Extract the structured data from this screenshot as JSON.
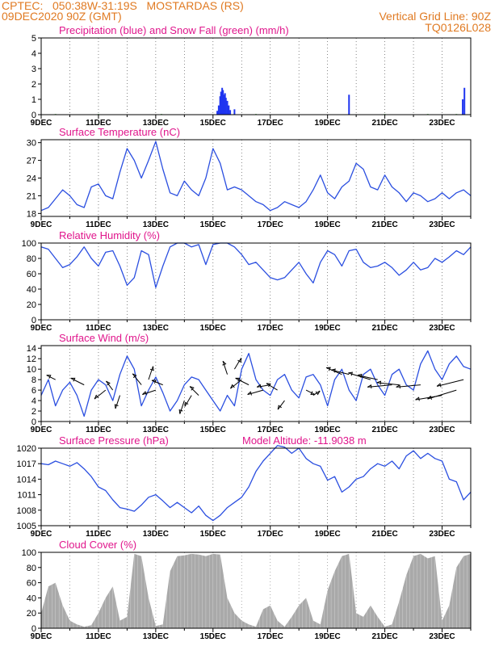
{
  "header": {
    "location_line": "CPTEC:   050:38W-31:19S   MOSTARDAS (RS)",
    "date_line": "09DEC2020 90Z (GMT)",
    "grid_line": "Vertical Grid Line: 90Z",
    "model_code": "TQ0126L028"
  },
  "colors": {
    "header": "#e07a22",
    "titles": "#e0168c",
    "precip": "#1f35f0",
    "snow": "#22aa22",
    "line": "#2b4fe0",
    "cloud": "#a9a9a9",
    "grid": "#555555",
    "arrow": "#000000"
  },
  "x_axis_labels": [
    "9DEC",
    "11DEC",
    "13DEC",
    "15DEC",
    "17DEC",
    "19DEC",
    "21DEC",
    "23DEC"
  ],
  "chart_data": [
    {
      "id": "precip",
      "type": "bar",
      "title": "Precipitation (blue) and Snow Fall (green) (mm/h)",
      "ylim": [
        0,
        5
      ],
      "yticks": [
        0,
        1,
        2,
        3,
        4,
        5
      ],
      "x_unit": "days since 9DEC 00Z",
      "series": [
        {
          "values": [
            [
              6.15,
              0.25
            ],
            [
              6.2,
              0.6
            ],
            [
              6.25,
              1.2
            ],
            [
              6.28,
              1.5
            ],
            [
              6.32,
              1.75
            ],
            [
              6.35,
              1.6
            ],
            [
              6.38,
              1.3
            ],
            [
              6.42,
              1.4
            ],
            [
              6.45,
              1.1
            ],
            [
              6.5,
              0.9
            ],
            [
              6.55,
              0.6
            ],
            [
              6.6,
              0.3
            ],
            [
              6.75,
              0.35
            ],
            [
              10.75,
              1.3
            ],
            [
              14.72,
              1.0
            ],
            [
              14.78,
              1.75
            ]
          ]
        },
        {
          "values": [
            [
              0.5,
              0.04
            ],
            [
              2.0,
              0.04
            ],
            [
              4.2,
              0.04
            ],
            [
              7.5,
              0.04
            ],
            [
              12.0,
              0.04
            ],
            [
              13.5,
              0.04
            ],
            [
              14.5,
              0.04
            ]
          ]
        }
      ]
    },
    {
      "id": "temperature",
      "type": "line",
      "title": "Surface Temperature (nC)",
      "ylim": [
        17.5,
        30.5
      ],
      "yticks": [
        18,
        21,
        24,
        27,
        30
      ],
      "x": [
        0,
        0.25,
        0.5,
        0.75,
        1.0,
        1.25,
        1.5,
        1.75,
        2.0,
        2.25,
        2.5,
        2.75,
        3.0,
        3.25,
        3.5,
        3.75,
        4.0,
        4.25,
        4.5,
        4.75,
        5.0,
        5.25,
        5.5,
        5.75,
        6.0,
        6.25,
        6.5,
        6.75,
        7.0,
        7.25,
        7.5,
        7.75,
        8.0,
        8.25,
        8.5,
        8.75,
        9.0,
        9.25,
        9.5,
        9.75,
        10.0,
        10.25,
        10.5,
        10.75,
        11.0,
        11.25,
        11.5,
        11.75,
        12.0,
        12.25,
        12.5,
        12.75,
        13.0,
        13.25,
        13.5,
        13.75,
        14.0,
        14.25,
        14.5,
        14.75,
        15.0
      ],
      "y": [
        18.5,
        19.0,
        20.5,
        22.0,
        21.0,
        19.5,
        19.0,
        22.5,
        23.0,
        21.0,
        20.5,
        25.0,
        29.0,
        27.0,
        24.0,
        27.0,
        30.2,
        25.5,
        21.5,
        21.0,
        23.5,
        22.0,
        21.0,
        24.0,
        29.0,
        26.5,
        22.0,
        22.5,
        22.0,
        21.0,
        20.0,
        19.5,
        18.5,
        19.0,
        20.0,
        19.5,
        19.0,
        20.0,
        22.0,
        24.5,
        21.5,
        20.5,
        22.5,
        23.5,
        26.5,
        25.5,
        22.5,
        22.0,
        24.5,
        22.5,
        21.5,
        20.0,
        21.5,
        21.0,
        20.0,
        20.5,
        21.5,
        20.5,
        21.5,
        22.0,
        21.0
      ]
    },
    {
      "id": "humidity",
      "type": "line",
      "title": "Relative Humidity (%)",
      "ylim": [
        0,
        100
      ],
      "yticks": [
        0,
        20,
        40,
        60,
        80,
        100
      ],
      "x": [
        0,
        0.25,
        0.5,
        0.75,
        1.0,
        1.25,
        1.5,
        1.75,
        2.0,
        2.25,
        2.5,
        2.75,
        3.0,
        3.25,
        3.5,
        3.75,
        4.0,
        4.25,
        4.5,
        4.75,
        5.0,
        5.25,
        5.5,
        5.75,
        6.0,
        6.25,
        6.5,
        6.75,
        7.0,
        7.25,
        7.5,
        7.75,
        8.0,
        8.25,
        8.5,
        8.75,
        9.0,
        9.25,
        9.5,
        9.75,
        10.0,
        10.25,
        10.5,
        10.75,
        11.0,
        11.25,
        11.5,
        11.75,
        12.0,
        12.25,
        12.5,
        12.75,
        13.0,
        13.25,
        13.5,
        13.75,
        14.0,
        14.25,
        14.5,
        14.75,
        15.0
      ],
      "y": [
        95,
        92,
        80,
        68,
        72,
        82,
        95,
        80,
        70,
        88,
        90,
        70,
        45,
        55,
        90,
        85,
        42,
        70,
        95,
        100,
        100,
        95,
        98,
        72,
        98,
        100,
        100,
        95,
        85,
        72,
        75,
        65,
        55,
        52,
        55,
        65,
        75,
        60,
        48,
        75,
        90,
        85,
        70,
        90,
        92,
        75,
        68,
        70,
        75,
        68,
        58,
        65,
        75,
        65,
        68,
        80,
        75,
        82,
        90,
        85,
        95
      ]
    },
    {
      "id": "wind",
      "type": "line",
      "title": "Surface Wind (m/s)",
      "ylim": [
        0,
        14.5
      ],
      "yticks": [
        0,
        2,
        4,
        6,
        8,
        10,
        12,
        14
      ],
      "x": [
        0,
        0.25,
        0.5,
        0.75,
        1.0,
        1.25,
        1.5,
        1.75,
        2.0,
        2.25,
        2.5,
        2.75,
        3.0,
        3.25,
        3.5,
        3.75,
        4.0,
        4.25,
        4.5,
        4.75,
        5.0,
        5.25,
        5.5,
        5.75,
        6.0,
        6.25,
        6.5,
        6.75,
        7.0,
        7.25,
        7.5,
        7.75,
        8.0,
        8.25,
        8.5,
        8.75,
        9.0,
        9.25,
        9.5,
        9.75,
        10.0,
        10.25,
        10.5,
        10.75,
        11.0,
        11.25,
        11.5,
        11.75,
        12.0,
        12.25,
        12.5,
        12.75,
        13.0,
        13.25,
        13.5,
        13.75,
        14.0,
        14.25,
        14.5,
        14.75,
        15.0
      ],
      "y": [
        5.0,
        8.0,
        3.0,
        6.0,
        7.5,
        5.0,
        1.0,
        6.0,
        8.0,
        7.0,
        4.0,
        9.0,
        12.5,
        10.0,
        3.0,
        6.0,
        8.5,
        5.5,
        2.0,
        4.0,
        7.0,
        8.5,
        8.0,
        6.0,
        4.0,
        2.0,
        5.0,
        3.0,
        10.0,
        13.0,
        8.0,
        6.0,
        5.0,
        8.0,
        9.0,
        6.0,
        4.5,
        8.5,
        9.0,
        7.0,
        3.0,
        8.0,
        10.0,
        6.0,
        4.0,
        9.0,
        10.0,
        7.0,
        5.0,
        9.0,
        10.0,
        7.0,
        6.0,
        11.0,
        13.5,
        10.0,
        8.0,
        11.0,
        12.5,
        10.5,
        10.0
      ]
    },
    {
      "id": "pressure",
      "type": "line",
      "title": "Surface Pressure (hPa)",
      "annotation": "Model Altitude: -11.9038 m",
      "ylim": [
        1005,
        1020
      ],
      "yticks": [
        1005,
        1008,
        1011,
        1014,
        1017,
        1020
      ],
      "x": [
        0,
        0.25,
        0.5,
        0.75,
        1.0,
        1.25,
        1.5,
        1.75,
        2.0,
        2.25,
        2.5,
        2.75,
        3.0,
        3.25,
        3.5,
        3.75,
        4.0,
        4.25,
        4.5,
        4.75,
        5.0,
        5.25,
        5.5,
        5.75,
        6.0,
        6.25,
        6.5,
        6.75,
        7.0,
        7.25,
        7.5,
        7.75,
        8.0,
        8.25,
        8.5,
        8.75,
        9.0,
        9.25,
        9.5,
        9.75,
        10.0,
        10.25,
        10.5,
        10.75,
        11.0,
        11.25,
        11.5,
        11.75,
        12.0,
        12.25,
        12.5,
        12.75,
        13.0,
        13.25,
        13.5,
        13.75,
        14.0,
        14.25,
        14.5,
        14.75,
        15.0
      ],
      "y": [
        1017.0,
        1016.8,
        1017.5,
        1017.0,
        1016.5,
        1017.2,
        1016.0,
        1014.5,
        1012.5,
        1011.8,
        1010.0,
        1008.5,
        1008.2,
        1007.8,
        1009.0,
        1010.5,
        1011.0,
        1009.8,
        1008.5,
        1009.5,
        1008.5,
        1007.5,
        1008.8,
        1007.0,
        1006.0,
        1007.0,
        1008.5,
        1009.5,
        1010.5,
        1012.5,
        1015.5,
        1017.5,
        1019.0,
        1020.5,
        1020.2,
        1019.0,
        1020.0,
        1018.0,
        1017.0,
        1016.5,
        1013.8,
        1014.5,
        1011.5,
        1012.5,
        1014.0,
        1014.5,
        1016.0,
        1017.0,
        1016.5,
        1017.5,
        1016.0,
        1018.5,
        1019.5,
        1018.0,
        1019.0,
        1018.0,
        1017.5,
        1014.0,
        1013.5,
        1010.0,
        1011.5
      ]
    },
    {
      "id": "cloud",
      "type": "area",
      "title": "Cloud Cover (%)",
      "ylim": [
        0,
        100
      ],
      "yticks": [
        0,
        20,
        40,
        60,
        80,
        100
      ],
      "x": [
        0,
        0.25,
        0.5,
        0.75,
        1.0,
        1.25,
        1.5,
        1.75,
        2.0,
        2.25,
        2.5,
        2.75,
        3.0,
        3.25,
        3.5,
        3.75,
        4.0,
        4.25,
        4.5,
        4.75,
        5.0,
        5.25,
        5.5,
        5.75,
        6.0,
        6.25,
        6.5,
        6.75,
        7.0,
        7.25,
        7.5,
        7.75,
        8.0,
        8.25,
        8.5,
        8.75,
        9.0,
        9.25,
        9.5,
        9.75,
        10.0,
        10.25,
        10.5,
        10.75,
        11.0,
        11.25,
        11.5,
        11.75,
        12.0,
        12.25,
        12.5,
        12.75,
        13.0,
        13.25,
        13.5,
        13.75,
        14.0,
        14.25,
        14.5,
        14.75,
        15.0
      ],
      "y": [
        20,
        55,
        60,
        30,
        10,
        5,
        2,
        4,
        20,
        40,
        55,
        10,
        15,
        98,
        95,
        40,
        3,
        5,
        75,
        95,
        96,
        98,
        97,
        95,
        98,
        97,
        40,
        20,
        10,
        5,
        2,
        25,
        30,
        10,
        2,
        15,
        30,
        40,
        10,
        5,
        50,
        75,
        95,
        98,
        20,
        15,
        30,
        15,
        2,
        5,
        35,
        70,
        95,
        98,
        92,
        95,
        10,
        30,
        80,
        95,
        98
      ]
    }
  ],
  "wind_arrows": {
    "times": [
      0.5,
      1.5,
      2.25,
      2.5,
      2.75,
      3.5,
      3.75,
      4.0,
      4.25,
      5.0,
      5.25,
      5.5,
      6.5,
      6.75,
      7.0,
      7.25,
      7.75,
      8.0,
      8.25,
      8.5,
      9.25,
      9.5,
      10.5,
      10.75,
      11.5,
      11.75,
      12.25,
      12.5,
      13.25,
      14.0,
      14.5,
      14.75
    ],
    "levels": [
      8,
      7,
      6,
      6,
      5,
      7,
      8,
      6,
      7,
      4,
      5,
      5,
      9,
      10,
      8,
      7,
      6,
      7,
      6,
      4,
      6,
      5,
      9,
      9,
      8,
      8,
      7,
      7,
      7,
      5,
      6,
      8
    ],
    "u": [
      -2.0,
      -3.0,
      -2.5,
      -1.5,
      -1.0,
      -2.0,
      1.0,
      -3.0,
      -2.5,
      -1.0,
      -1.5,
      -2.0,
      -1.0,
      1.5,
      -2.5,
      -3.0,
      -3.5,
      -3.0,
      -2.5,
      -1.5,
      2.0,
      1.5,
      -3.5,
      -4.0,
      -5.0,
      -4.5,
      -5.5,
      -5.0,
      -5.5,
      -6.0,
      -6.5,
      -6.0
    ],
    "v": [
      1.0,
      1.5,
      -2.0,
      2.0,
      -3.0,
      2.5,
      3.0,
      -1.0,
      1.0,
      -3.0,
      -2.5,
      2.0,
      3.0,
      2.5,
      -2.0,
      1.5,
      -1.0,
      -0.5,
      1.5,
      -2.0,
      -1.0,
      1.0,
      1.5,
      1.0,
      1.5,
      1.0,
      -0.5,
      0.5,
      -0.5,
      -1.0,
      -2.0,
      -1.5
    ]
  }
}
